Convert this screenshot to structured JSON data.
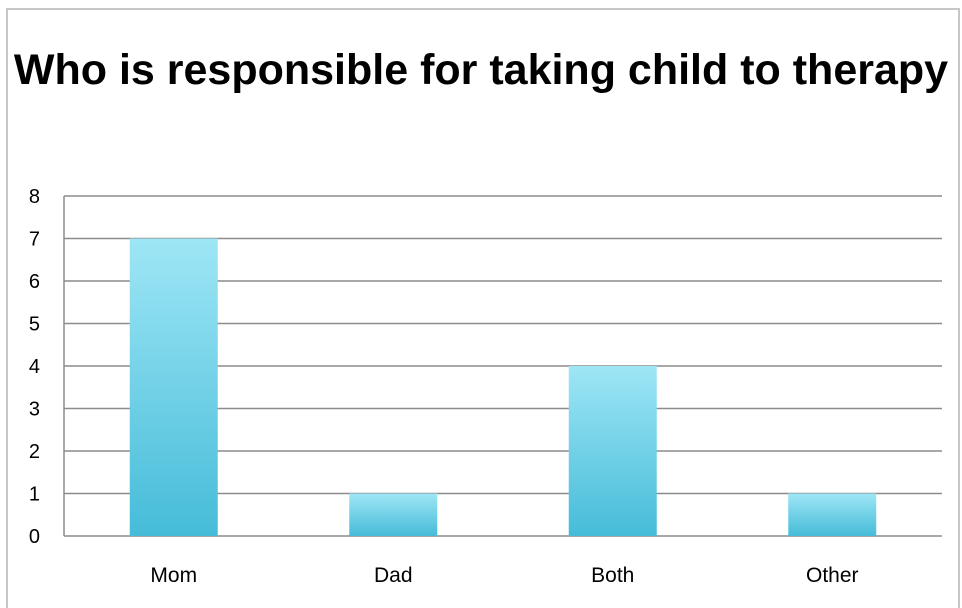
{
  "chart_data": {
    "type": "bar",
    "title": "Who is responsible for taking child to therapy",
    "categories": [
      "Mom",
      "Dad",
      "Both",
      "Other"
    ],
    "values": [
      7,
      1,
      4,
      1
    ],
    "xlabel": "",
    "ylabel": "",
    "ylim": [
      0,
      8
    ],
    "yticks": [
      "0",
      "1",
      "2",
      "3",
      "4",
      "5",
      "6",
      "7",
      "8"
    ],
    "grid": true,
    "legend": "none",
    "colors": {
      "bar_top": "#9ee6f6",
      "bar_bottom": "#46bcd8",
      "grid": "#8c8c8c",
      "frame": "#c7c7c7"
    }
  }
}
